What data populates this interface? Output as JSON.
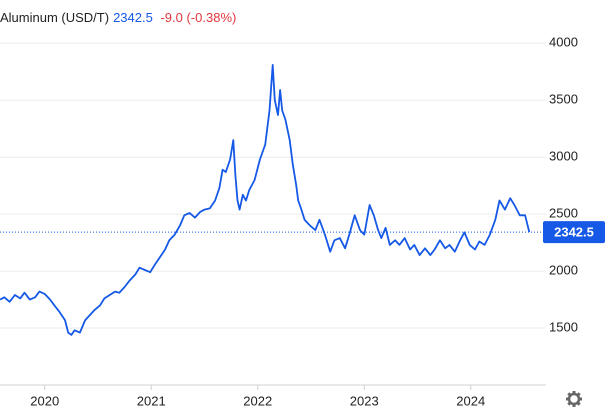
{
  "chart_data": {
    "type": "line",
    "title": "Aluminum (USD/T)",
    "last_value": 2342.5,
    "change": "-9.0 (-0.38%)",
    "color": "#1559e6",
    "x": [
      2019.58,
      2019.62,
      2019.67,
      2019.72,
      2019.77,
      2019.81,
      2019.86,
      2019.91,
      2019.95,
      2020.0,
      2020.05,
      2020.09,
      2020.14,
      2020.19,
      2020.22,
      2020.25,
      2020.28,
      2020.33,
      2020.38,
      2020.42,
      2020.47,
      2020.52,
      2020.56,
      2020.61,
      2020.66,
      2020.7,
      2020.75,
      2020.8,
      2020.85,
      2020.89,
      2020.94,
      2020.99,
      2021.03,
      2021.08,
      2021.13,
      2021.17,
      2021.22,
      2021.27,
      2021.31,
      2021.36,
      2021.41,
      2021.46,
      2021.5,
      2021.55,
      2021.6,
      2021.64,
      2021.67,
      2021.7,
      2021.74,
      2021.77,
      2021.79,
      2021.81,
      2021.83,
      2021.86,
      2021.89,
      2021.92,
      2021.97,
      2022.02,
      2022.07,
      2022.11,
      2022.14,
      2022.16,
      2022.19,
      2022.21,
      2022.23,
      2022.26,
      2022.3,
      2022.33,
      2022.36,
      2022.38,
      2022.41,
      2022.44,
      2022.49,
      2022.54,
      2022.58,
      2022.63,
      2022.68,
      2022.72,
      2022.77,
      2022.82,
      2022.86,
      2022.91,
      2022.96,
      2023.0,
      2023.05,
      2023.09,
      2023.13,
      2023.16,
      2023.2,
      2023.24,
      2023.29,
      2023.33,
      2023.38,
      2023.43,
      2023.47,
      2023.52,
      2023.57,
      2023.62,
      2023.66,
      2023.71,
      2023.76,
      2023.8,
      2023.85,
      2023.9,
      2023.94,
      2023.99,
      2024.04,
      2024.08,
      2024.13,
      2024.18,
      2024.23,
      2024.27,
      2024.32,
      2024.37,
      2024.41,
      2024.46,
      2024.51,
      2024.55
    ],
    "values": [
      1750,
      1770,
      1730,
      1790,
      1760,
      1810,
      1750,
      1770,
      1820,
      1800,
      1750,
      1700,
      1640,
      1570,
      1460,
      1440,
      1480,
      1460,
      1570,
      1610,
      1660,
      1700,
      1760,
      1790,
      1820,
      1810,
      1860,
      1920,
      1970,
      2030,
      2010,
      1990,
      2050,
      2120,
      2190,
      2270,
      2320,
      2400,
      2490,
      2510,
      2470,
      2520,
      2540,
      2550,
      2620,
      2730,
      2890,
      2870,
      2980,
      3150,
      2840,
      2620,
      2540,
      2670,
      2620,
      2710,
      2800,
      2980,
      3110,
      3410,
      3810,
      3500,
      3370,
      3590,
      3410,
      3330,
      3150,
      2930,
      2760,
      2620,
      2540,
      2450,
      2400,
      2360,
      2450,
      2320,
      2170,
      2270,
      2290,
      2200,
      2320,
      2490,
      2360,
      2320,
      2580,
      2490,
      2360,
      2290,
      2380,
      2230,
      2270,
      2230,
      2290,
      2190,
      2230,
      2140,
      2200,
      2140,
      2190,
      2270,
      2200,
      2230,
      2170,
      2270,
      2340,
      2230,
      2190,
      2260,
      2230,
      2320,
      2450,
      2620,
      2540,
      2640,
      2580,
      2490,
      2490,
      2342.5
    ],
    "xlim": [
      2019.58,
      2024.65
    ],
    "xticks": [
      2020,
      2021,
      2022,
      2023,
      2024
    ],
    "ylim": [
      1000,
      4380
    ],
    "yticks": [
      1500,
      2000,
      2500,
      3000,
      3500,
      4000
    ],
    "grid": true
  }
}
